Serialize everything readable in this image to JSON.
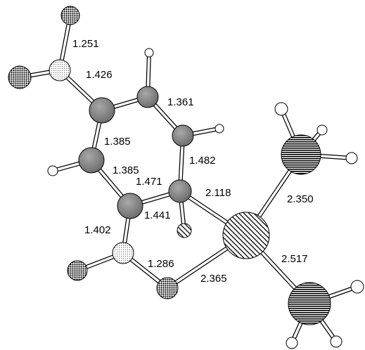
{
  "bond_labels": [
    "1.251",
    "1.426",
    "1.361",
    "1.385",
    "1.482",
    "1.385",
    "1.471",
    "2.118",
    "1.441",
    "2.350",
    "1.402",
    "1.286",
    "2.517",
    "2.365"
  ]
}
